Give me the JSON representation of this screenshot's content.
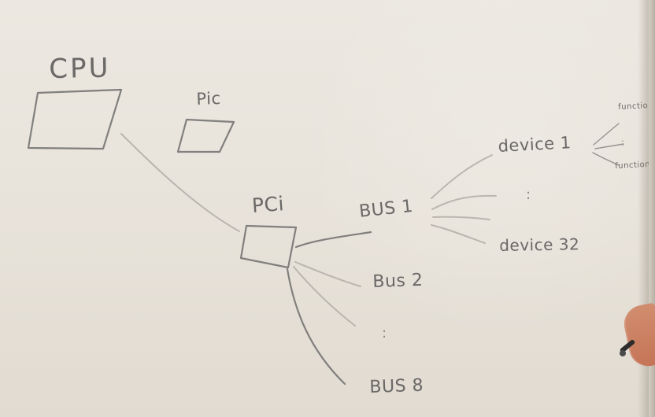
{
  "diagram": {
    "labels": {
      "cpu": "CPU",
      "pic": "Pic",
      "pci": "PCi",
      "bus_1": "BUS 1",
      "bus_2": "Bus 2",
      "bus_8": "BUS 8",
      "device_1": "device 1",
      "device_32": "device 32",
      "function_top": "function",
      "function_bottom": "function"
    },
    "ellipsis": {
      "devices": ":",
      "buses": ":",
      "functions": ":"
    },
    "colors": {
      "background": "#e9e4dc",
      "marker": "#767473",
      "faint_marker": "#b5b0aa"
    },
    "icons": {
      "marker": "marker-icon",
      "hand": "hand-icon"
    }
  }
}
